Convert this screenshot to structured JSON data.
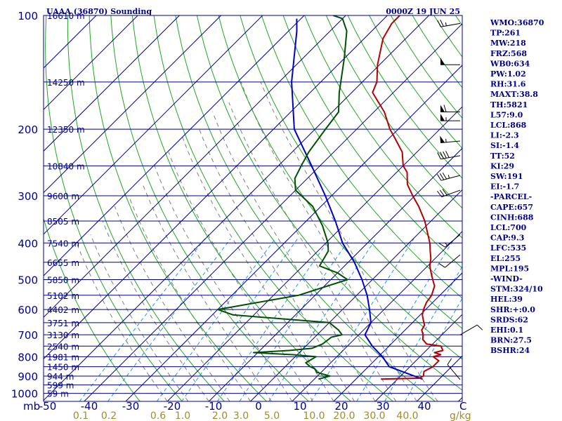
{
  "header": {
    "station": "UAAA (36870) Sounding",
    "time": "0000Z 19 JUN 25"
  },
  "colors": {
    "isobar": "#00008b",
    "isotherm": "#00008b",
    "dry_adiabat": "#22a522",
    "moist_adiabat": "#008080",
    "mixing_ratio": "#1e90ff",
    "temperature": "#b40000",
    "dewpoint": "#005000",
    "parcel": "#0000c8",
    "wind_barb": "#000000",
    "mixing_label": "#a08c28"
  },
  "chart_data": {
    "type": "line",
    "diagram": "skew-t log-p",
    "y_axis_unit": "mb",
    "x_axis_unit": "C",
    "mixing_ratio_unit": "g/kg",
    "pressure_ticks": [
      {
        "p": 100,
        "label": "100"
      },
      {
        "p": 200,
        "label": "200"
      },
      {
        "p": 300,
        "label": "300"
      },
      {
        "p": 400,
        "label": "400"
      },
      {
        "p": 500,
        "label": "500"
      },
      {
        "p": 600,
        "label": "600"
      },
      {
        "p": 700,
        "label": "700"
      },
      {
        "p": 800,
        "label": "800"
      },
      {
        "p": 900,
        "label": "900"
      },
      {
        "p": 1000,
        "label": "1000"
      }
    ],
    "temperature_ticks": [
      "-50",
      "-40",
      "-30",
      "-20",
      "-10",
      "0",
      "10",
      "20",
      "30",
      "40"
    ],
    "mixing_ratio_ticks": [
      "0.1",
      "0.2",
      "0.6",
      "1.0",
      "2.0",
      "3.0",
      "5.0",
      "10.0",
      "20.0",
      "30.0",
      "40.0"
    ],
    "height_levels": [
      {
        "p": 100,
        "label": "16610 m"
      },
      {
        "p": 150,
        "label": "14250 m"
      },
      {
        "p": 200,
        "label": "12350 m"
      },
      {
        "p": 250,
        "label": "10840 m"
      },
      {
        "p": 300,
        "label": "9600 m"
      },
      {
        "p": 350,
        "label": "8505 m"
      },
      {
        "p": 400,
        "label": "7540 m"
      },
      {
        "p": 450,
        "label": "6655 m"
      },
      {
        "p": 500,
        "label": "5850 m"
      },
      {
        "p": 550,
        "label": "5102 m"
      },
      {
        "p": 600,
        "label": "4402 m"
      },
      {
        "p": 650,
        "label": "3751 m"
      },
      {
        "p": 700,
        "label": "3130 m"
      },
      {
        "p": 750,
        "label": "2540 m"
      },
      {
        "p": 800,
        "label": "1981 m"
      },
      {
        "p": 850,
        "label": "1450 m"
      },
      {
        "p": 900,
        "label": "944 m"
      },
      {
        "p": 950,
        "label": "599 m"
      },
      {
        "p": 1000,
        "label": "59 m"
      }
    ],
    "temperature_profile": [
      [
        917,
        26
      ],
      [
        912,
        35
      ],
      [
        900,
        35.5
      ],
      [
        875,
        34.5
      ],
      [
        850,
        35.5
      ],
      [
        820,
        35.5
      ],
      [
        800,
        33.2
      ],
      [
        790,
        34.5
      ],
      [
        780,
        32.5
      ],
      [
        770,
        34
      ],
      [
        750,
        32.5
      ],
      [
        740,
        28.5
      ],
      [
        720,
        26.5
      ],
      [
        700,
        25.5
      ],
      [
        680,
        24
      ],
      [
        660,
        23.5
      ],
      [
        640,
        22
      ],
      [
        620,
        20.5
      ],
      [
        600,
        19.5
      ],
      [
        575,
        18.5
      ],
      [
        550,
        18
      ],
      [
        520,
        16.5
      ],
      [
        500,
        14.5
      ],
      [
        480,
        12.5
      ],
      [
        460,
        10.5
      ],
      [
        440,
        9
      ],
      [
        420,
        7
      ],
      [
        400,
        5
      ],
      [
        350,
        -1.5
      ],
      [
        320,
        -6.5
      ],
      [
        300,
        -10.5
      ],
      [
        280,
        -14.5
      ],
      [
        260,
        -17.5
      ],
      [
        250,
        -20
      ],
      [
        230,
        -23.5
      ],
      [
        210,
        -29
      ],
      [
        200,
        -32
      ],
      [
        180,
        -37.5
      ],
      [
        160,
        -45
      ],
      [
        150,
        -46.5
      ],
      [
        135,
        -50.5
      ],
      [
        115,
        -55.5
      ],
      [
        105,
        -57
      ],
      [
        100,
        -57
      ]
    ],
    "dewpoint_profile": [
      [
        917,
        11
      ],
      [
        900,
        13
      ],
      [
        880,
        9
      ],
      [
        860,
        7.5
      ],
      [
        850,
        6
      ],
      [
        830,
        4
      ],
      [
        800,
        5
      ],
      [
        790,
        -1
      ],
      [
        780,
        -11
      ],
      [
        770,
        -3
      ],
      [
        760,
        2
      ],
      [
        740,
        3.5
      ],
      [
        710,
        4
      ],
      [
        700,
        6
      ],
      [
        680,
        4
      ],
      [
        650,
        0
      ],
      [
        620,
        -25
      ],
      [
        600,
        -30
      ],
      [
        550,
        -14
      ],
      [
        500,
        -6
      ],
      [
        480,
        -10
      ],
      [
        460,
        -16
      ],
      [
        420,
        -17.5
      ],
      [
        400,
        -19.5
      ],
      [
        360,
        -25
      ],
      [
        320,
        -32
      ],
      [
        290,
        -40
      ],
      [
        270,
        -43
      ],
      [
        250,
        -44.5
      ],
      [
        230,
        -46
      ],
      [
        200,
        -47.5
      ],
      [
        180,
        -48.5
      ],
      [
        160,
        -53
      ],
      [
        130,
        -60
      ],
      [
        110,
        -66
      ],
      [
        102,
        -70
      ],
      [
        100,
        -73
      ]
    ],
    "parcel_profile": [
      [
        917,
        36
      ],
      [
        850,
        25
      ],
      [
        800,
        21
      ],
      [
        750,
        16
      ],
      [
        700,
        11.5
      ],
      [
        650,
        10
      ],
      [
        600,
        6.5
      ],
      [
        550,
        2.5
      ],
      [
        500,
        -2.5
      ],
      [
        450,
        -8.5
      ],
      [
        400,
        -16
      ],
      [
        350,
        -23
      ],
      [
        300,
        -31.5
      ],
      [
        250,
        -42
      ],
      [
        200,
        -55
      ],
      [
        150,
        -67
      ],
      [
        110,
        -78
      ],
      [
        102,
        -81
      ]
    ],
    "wind_barbs": [
      {
        "p": 105,
        "dir": 260,
        "kt": 25
      },
      {
        "p": 135,
        "dir": 270,
        "kt": 50
      },
      {
        "p": 180,
        "dir": 270,
        "kt": 60
      },
      {
        "p": 190,
        "dir": 270,
        "kt": 55
      },
      {
        "p": 215,
        "dir": 265,
        "kt": 55
      },
      {
        "p": 235,
        "dir": 260,
        "kt": 40
      },
      {
        "p": 265,
        "dir": 255,
        "kt": 35
      },
      {
        "p": 290,
        "dir": 250,
        "kt": 30
      },
      {
        "p": 380,
        "dir": 230,
        "kt": 15
      },
      {
        "p": 430,
        "dir": 230,
        "kt": 10
      },
      {
        "p": 700,
        "dir": 60,
        "kt": 10
      },
      {
        "p": 920,
        "dir": 320,
        "kt": 10
      }
    ]
  },
  "stats": [
    "WMO:36870",
    "TP:261",
    "MW:218",
    "FRZ:568",
    "WB0:634",
    "PW:1.02",
    "RH:31.6",
    "MAXT:38.8",
    "TH:5821",
    "L57:9.0",
    "LCL:868",
    "LI:-2.3",
    "SI:-1.4",
    "TT:52",
    "KI:29",
    "SW:191",
    "EI:-1.7",
    "-PARCEL-",
    "CAPE:657",
    "CINH:688",
    "LCL:700",
    "CAP:9.3",
    "LFC:535",
    "EL:255",
    "MPL:195",
    "-WIND-",
    "STM:324/10",
    "HEL:39",
    "SHR:+:0.0",
    "SRDS:62",
    "EHI:0.1",
    "BRN:27.5",
    "BSHR:24"
  ]
}
